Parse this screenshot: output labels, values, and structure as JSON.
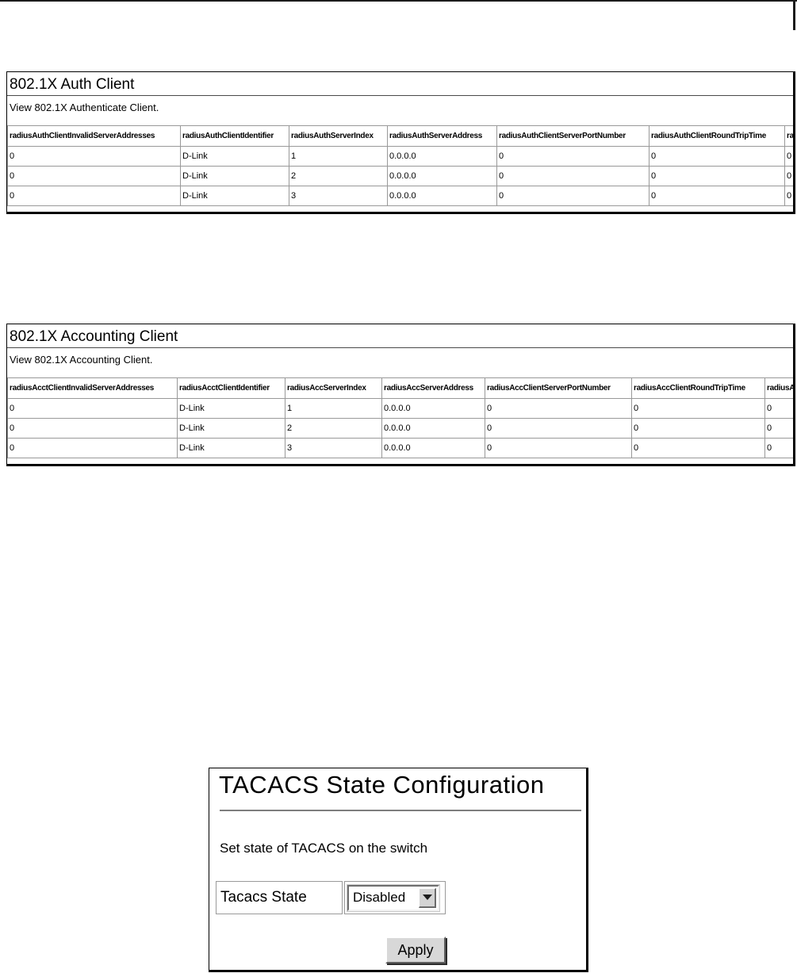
{
  "colors": {
    "frame_border": "#000000",
    "table_border": "#999999",
    "title_rule": "#4a4a4a",
    "tacacs_rule": "#7d7d7d",
    "button_face": "#d8d8d8",
    "background": "#ffffff"
  },
  "auth_panel": {
    "title": "802.1X Auth Client",
    "subtitle": "View 802.1X Authenticate Client.",
    "table": {
      "headers": [
        "radiusAuthClientInvalidServerAddresses",
        "radiusAuthClientIdentifier",
        "radiusAuthServerIndex",
        "radiusAuthServerAddress",
        "radiusAuthClientServerPortNumber",
        "radiusAuthClientRoundTripTime",
        "ra"
      ],
      "rows": [
        [
          "0",
          "D-Link",
          "1",
          "0.0.0.0",
          "0",
          "0",
          "0"
        ],
        [
          "0",
          "D-Link",
          "2",
          "0.0.0.0",
          "0",
          "0",
          "0"
        ],
        [
          "0",
          "D-Link",
          "3",
          "0.0.0.0",
          "0",
          "0",
          "0"
        ]
      ]
    }
  },
  "acct_panel": {
    "title": "802.1X Accounting Client",
    "subtitle": "View 802.1X Accounting Client.",
    "table": {
      "headers": [
        "radiusAcctClientInvalidServerAddresses",
        "radiusAcctClientIdentifier",
        "radiusAccServerIndex",
        "radiusAccServerAddress",
        "radiusAccClientServerPortNumber",
        "radiusAccClientRoundTripTime",
        "radiusA"
      ],
      "rows": [
        [
          "0",
          "D-Link",
          "1",
          "0.0.0.0",
          "0",
          "0",
          "0"
        ],
        [
          "0",
          "D-Link",
          "2",
          "0.0.0.0",
          "0",
          "0",
          "0"
        ],
        [
          "0",
          "D-Link",
          "3",
          "0.0.0.0",
          "0",
          "0",
          "0"
        ]
      ]
    }
  },
  "tacacs_panel": {
    "title": "TACACS State Configuration",
    "description": "Set state of TACACS on the switch",
    "field_label": "Tacacs State",
    "select_value": "Disabled",
    "apply_label": "Apply"
  }
}
